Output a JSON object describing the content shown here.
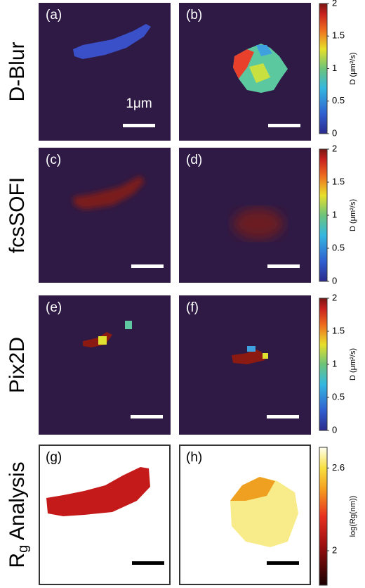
{
  "rows": [
    {
      "label": "D-Blur",
      "panels": [
        "(a)",
        "(b)"
      ]
    },
    {
      "label": "fcsSOFI",
      "panels": [
        "(c)",
        "(d)"
      ]
    },
    {
      "label": "Pix2D",
      "panels": [
        "(e)",
        "(f)"
      ]
    },
    {
      "label_main": "R",
      "label_sub": "g",
      "label_rest": " Analysis",
      "panels": [
        "(g)",
        "(h)"
      ]
    }
  ],
  "scale_bar_label": "1μm",
  "colorbars": [
    {
      "label": "D (μm²/s)",
      "ticks": [
        2,
        1.5,
        1,
        0.5,
        0
      ]
    },
    {
      "label": "D (μm²/s)",
      "ticks": [
        2,
        1.5,
        1,
        0.5,
        0
      ]
    },
    {
      "label": "D (μm²/s)",
      "ticks": [
        2,
        1.5,
        1,
        0.5,
        0
      ]
    },
    {
      "label": "log(Rg(nm))",
      "ticks": [
        2.6,
        2
      ]
    }
  ]
}
